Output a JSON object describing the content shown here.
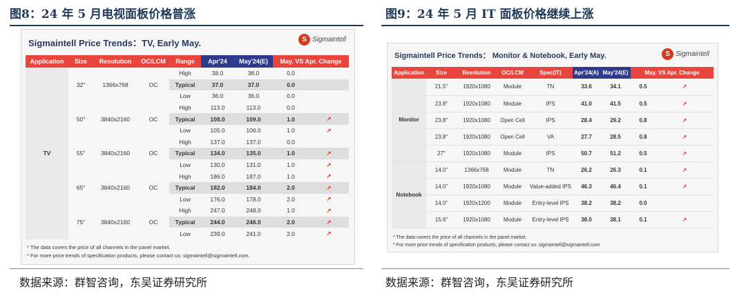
{
  "fig8": {
    "title": "图8：24 年 5 月电视面板价格普涨",
    "source": "数据来源：群智咨询，东吴证券研究所",
    "panel_title": "Sigmaintell Price Trends：TV, Early May.",
    "logo_text": "Sigmaintell",
    "headers": [
      "Application",
      "Size",
      "Resolution",
      "OC/LCM",
      "Range",
      "Apr'24",
      "May'24(E)",
      "May. VS Apr. Change"
    ],
    "application": "TV",
    "groups": [
      {
        "size": "32\"",
        "resolution": "1366x768",
        "type": "OC",
        "rows": [
          {
            "range": "High",
            "apr": "38.0",
            "may": "38.0",
            "change": "0.0",
            "arrow": ""
          },
          {
            "range": "Typical",
            "apr": "37.0",
            "may": "37.0",
            "change": "0.0",
            "arrow": ""
          },
          {
            "range": "Low",
            "apr": "36.0",
            "may": "36.0",
            "change": "0.0",
            "arrow": ""
          }
        ]
      },
      {
        "size": "50\"",
        "resolution": "3840x2160",
        "type": "OC",
        "rows": [
          {
            "range": "High",
            "apr": "113.0",
            "may": "113.0",
            "change": "0.0",
            "arrow": ""
          },
          {
            "range": "Typical",
            "apr": "108.0",
            "may": "109.0",
            "change": "1.0",
            "arrow": "↗"
          },
          {
            "range": "Low",
            "apr": "105.0",
            "may": "106.0",
            "change": "1.0",
            "arrow": "↗"
          }
        ]
      },
      {
        "size": "55\"",
        "resolution": "3840x2160",
        "type": "OC",
        "rows": [
          {
            "range": "High",
            "apr": "137.0",
            "may": "137.0",
            "change": "0.0",
            "arrow": ""
          },
          {
            "range": "Typical",
            "apr": "134.0",
            "may": "135.0",
            "change": "1.0",
            "arrow": "↗"
          },
          {
            "range": "Low",
            "apr": "130.0",
            "may": "131.0",
            "change": "1.0",
            "arrow": "↗"
          }
        ]
      },
      {
        "size": "65\"",
        "resolution": "3840x2160",
        "type": "OC",
        "rows": [
          {
            "range": "High",
            "apr": "186.0",
            "may": "187.0",
            "change": "1.0",
            "arrow": "↗"
          },
          {
            "range": "Typical",
            "apr": "182.0",
            "may": "184.0",
            "change": "2.0",
            "arrow": "↗"
          },
          {
            "range": "Low",
            "apr": "176.0",
            "may": "178.0",
            "change": "2.0",
            "arrow": "↗"
          }
        ]
      },
      {
        "size": "75\"",
        "resolution": "3840x2160",
        "type": "OC",
        "rows": [
          {
            "range": "High",
            "apr": "247.0",
            "may": "248.0",
            "change": "1.0",
            "arrow": "↗"
          },
          {
            "range": "Typical",
            "apr": "244.0",
            "may": "246.0",
            "change": "2.0",
            "arrow": "↗"
          },
          {
            "range": "Low",
            "apr": "239.0",
            "may": "241.0",
            "change": "2.0",
            "arrow": "↗"
          }
        ]
      }
    ],
    "notes": [
      "* The data covers the price of all channels in the panel market.",
      "* For more price trends of specification products, please contact us: sigmaintell@sigmaintell.com."
    ]
  },
  "fig9": {
    "title": "图9：24 年 5 月 IT 面板价格继续上涨",
    "source": "数据来源：群智咨询，东吴证券研究所",
    "panel_title": "Sigmaintell Price Trends：  Monitor & Notebook, Early May.",
    "logo_text": "Sigmaintell",
    "headers": [
      "Application",
      "Size",
      "Resolution",
      "OC/LCM",
      "Spec(IT)",
      "Apr'24(A)",
      "May'24(E)",
      "May. VS Apr. Change"
    ],
    "sections": [
      {
        "application": "Monitor",
        "rows": [
          {
            "size": "21.5\"",
            "resolution": "1920x1080",
            "type": "Module",
            "spec": "TN",
            "apr": "33.6",
            "may": "34.1",
            "change": "0.5",
            "arrow": "↗"
          },
          {
            "size": "23.8\"",
            "resolution": "1920x1080",
            "type": "Module",
            "spec": "IPS",
            "apr": "41.0",
            "may": "41.5",
            "change": "0.5",
            "arrow": "↗"
          },
          {
            "size": "23.8\"",
            "resolution": "1920x1080",
            "type": "Open Cell",
            "spec": "IPS",
            "apr": "28.4",
            "may": "29.2",
            "change": "0.8",
            "arrow": "↗"
          },
          {
            "size": "23.8\"",
            "resolution": "1920x1080",
            "type": "Open Cell",
            "spec": "VA",
            "apr": "27.7",
            "may": "28.5",
            "change": "0.8",
            "arrow": "↗"
          },
          {
            "size": "27\"",
            "resolution": "1920x1080",
            "type": "Module",
            "spec": "IPS",
            "apr": "50.7",
            "may": "51.2",
            "change": "0.5",
            "arrow": "↗"
          }
        ]
      },
      {
        "application": "Notebook",
        "rows": [
          {
            "size": "14.0\"",
            "resolution": "1366x768",
            "type": "Module",
            "spec": "TN",
            "apr": "26.2",
            "may": "26.3",
            "change": "0.1",
            "arrow": "↗"
          },
          {
            "size": "14.0\"",
            "resolution": "1920x1080",
            "type": "Module",
            "spec": "Value-added IPS",
            "apr": "46.3",
            "may": "46.4",
            "change": "0.1",
            "arrow": "↗"
          },
          {
            "size": "14.0\"",
            "resolution": "1920x1200",
            "type": "Module",
            "spec": "Entry-level IPS",
            "apr": "38.2",
            "may": "38.2",
            "change": "0.0",
            "arrow": ""
          },
          {
            "size": "15.6\"",
            "resolution": "1920x1080",
            "type": "Module",
            "spec": "Entry-level IPS",
            "apr": "38.0",
            "may": "38.1",
            "change": "0.1",
            "arrow": "↗"
          }
        ]
      }
    ],
    "notes": [
      "* The data covers the price of all channels in the panel market.",
      "* For more price trends of specification products, please contact us: sigmaintell@sigmaintell.com"
    ]
  },
  "colors": {
    "header_red": "#e8453c",
    "header_highlight": "#2e3a8c",
    "arrow_red": "#d53a2a",
    "title_navy": "#1f3a5a"
  },
  "icons": {
    "logo": "sigmaintell-logo-icon",
    "up_arrow": "up-right-arrow-icon"
  }
}
